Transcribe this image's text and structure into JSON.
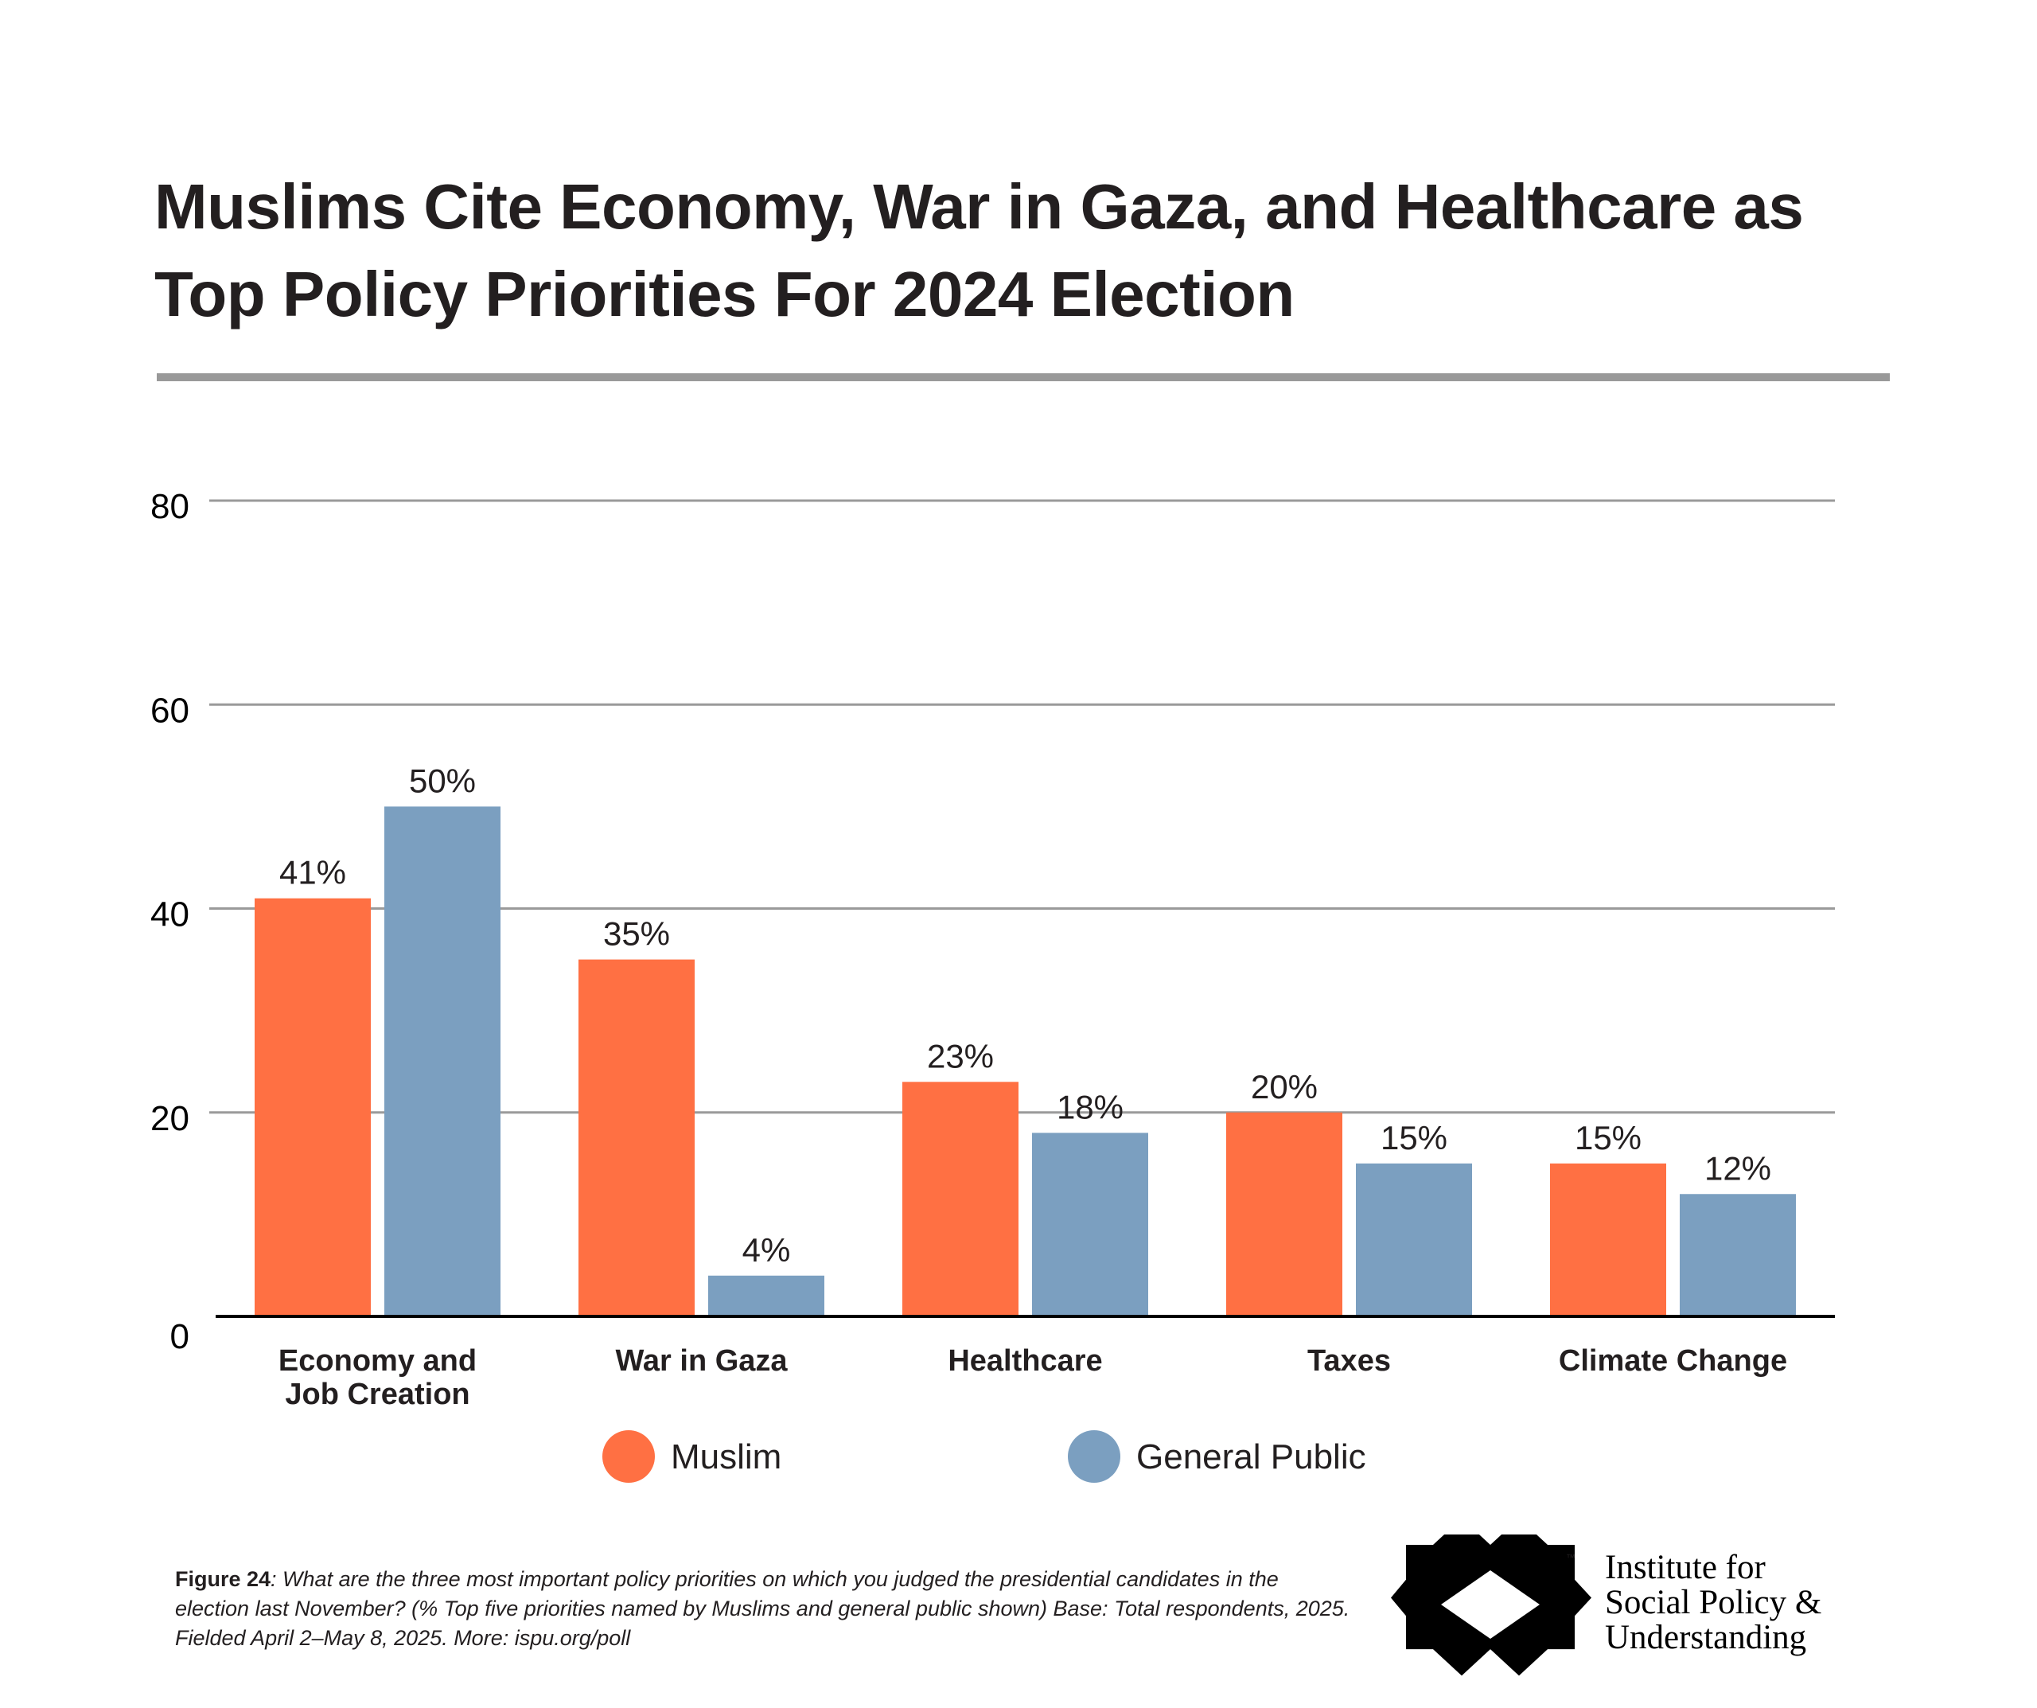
{
  "title": {
    "line1": "Muslims Cite Economy, War in Gaza, and Healthcare as",
    "line2": "Top Policy Priorities For 2024 Election"
  },
  "colors": {
    "muslim": "#ff7043",
    "general_public": "#7b9fc0",
    "gridline": "#9a9a9a",
    "axis": "#000000",
    "title_rule": "#999999",
    "text": "#231f20"
  },
  "chart_data": {
    "type": "bar",
    "title": "Muslims Cite Economy, War in Gaza, and Healthcare as Top Policy Priorities For 2024 Election",
    "xlabel": "",
    "ylabel": "",
    "ylim": [
      0,
      80
    ],
    "yticks": [
      0,
      20,
      40,
      60,
      80
    ],
    "grid": true,
    "legend_position": "bottom-center",
    "categories": [
      "Economy and Job Creation",
      "War in Gaza",
      "Healthcare",
      "Taxes",
      "Climate Change"
    ],
    "category_label_lines": [
      [
        "Economy and",
        "Job Creation"
      ],
      [
        "War in Gaza"
      ],
      [
        "Healthcare"
      ],
      [
        "Taxes"
      ],
      [
        "Climate Change"
      ]
    ],
    "series": [
      {
        "name": "Muslim",
        "color": "#ff7043",
        "values": [
          41,
          35,
          23,
          20,
          15
        ],
        "labels": [
          "41%",
          "35%",
          "23%",
          "20%",
          "15%"
        ]
      },
      {
        "name": "General Public",
        "color": "#7b9fc0",
        "values": [
          50,
          4,
          18,
          15,
          12
        ],
        "labels": [
          "50%",
          "4%",
          "18%",
          "15%",
          "12%"
        ]
      }
    ]
  },
  "caption": {
    "figure_label": "Figure 24",
    "text": ": What are the three most important policy priorities on which you judged the presidential candidates in the election last November? (% Top five priorities named by Muslims and general public shown) Base: Total respondents, 2025. Fielded April 2–May 8, 2025. More: ispu.org/poll"
  },
  "logo": {
    "line1": "Institute for",
    "line2": "Social Policy &",
    "line3": "Understanding",
    "trademark": "™",
    "icon": "eight-point-star-icon"
  }
}
